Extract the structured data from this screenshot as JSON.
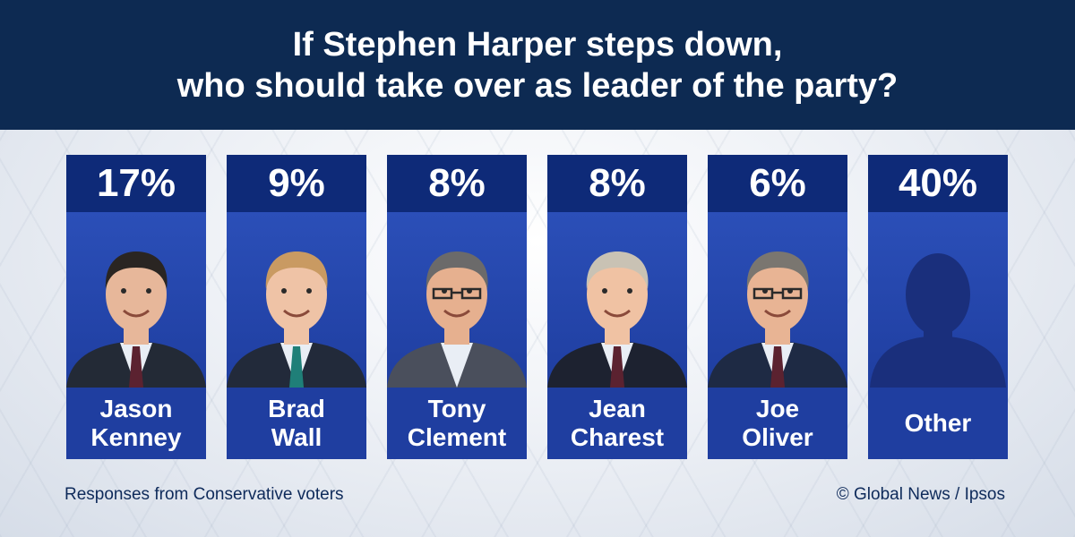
{
  "header": {
    "title_line1": "If Stephen Harper steps down,",
    "title_line2": "who should take over as leader of the party?"
  },
  "footer": {
    "note": "Responses from Conservative voters",
    "credit": "© Global News / Ipsos"
  },
  "colors": {
    "header_bg": "#0d2a52",
    "pct_bg": "#0e2a78",
    "card_bg": "#1f3ea0"
  },
  "chart_data": {
    "type": "bar",
    "title": "If Stephen Harper steps down, who should take over as leader of the party?",
    "categories": [
      "Jason Kenney",
      "Brad Wall",
      "Tony Clement",
      "Jean Charest",
      "Joe Oliver",
      "Other"
    ],
    "values": [
      17,
      9,
      8,
      8,
      6,
      40
    ],
    "value_labels": [
      "17%",
      "9%",
      "8%",
      "8%",
      "6%",
      "40%"
    ],
    "name_lines": [
      [
        "Jason",
        "Kenney"
      ],
      [
        "Brad",
        "Wall"
      ],
      [
        "Tony",
        "Clement"
      ],
      [
        "Jean",
        "Charest"
      ],
      [
        "Joe",
        "Oliver"
      ],
      [
        "Other"
      ]
    ],
    "ylabel": "",
    "xlabel": ""
  }
}
